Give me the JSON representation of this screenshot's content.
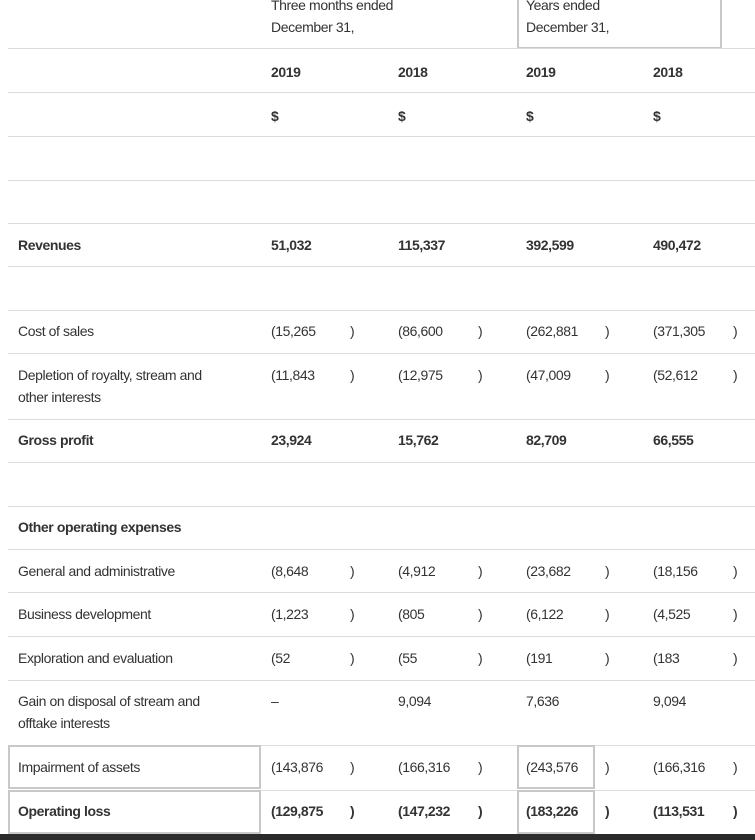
{
  "header": {
    "three_months": [
      "Three months ended",
      "December 31,"
    ],
    "years": [
      "Years ended",
      "December 31,"
    ],
    "years_row": [
      "2019",
      "2018",
      "2019",
      "2018"
    ],
    "currency_row": [
      "$",
      "$",
      "$",
      "$"
    ]
  },
  "rows": [
    {
      "label": "Revenues",
      "bold": true,
      "values": [
        "51,032",
        "115,337",
        "392,599",
        "490,472"
      ],
      "negative": [
        false,
        false,
        false,
        false
      ]
    },
    {
      "label": "Cost of sales",
      "values": [
        "(15,265",
        "(86,600",
        "(262,881",
        "(371,305"
      ],
      "negative": [
        true,
        true,
        true,
        true
      ]
    },
    {
      "label": "Depletion of royalty, stream and other interests",
      "label_lines": [
        "Depletion of royalty, stream and",
        "other interests"
      ],
      "values": [
        "(11,843",
        "(12,975",
        "(47,009",
        "(52,612"
      ],
      "negative": [
        true,
        true,
        true,
        true
      ]
    },
    {
      "label": "Gross profit",
      "bold": true,
      "values": [
        "23,924",
        "15,762",
        "82,709",
        "66,555"
      ],
      "negative": [
        false,
        false,
        false,
        false
      ]
    },
    {
      "label": "Other operating expenses",
      "bold": true,
      "section": true,
      "values": [
        "",
        "",
        "",
        ""
      ],
      "negative": [
        false,
        false,
        false,
        false
      ]
    },
    {
      "label": "General and administrative",
      "values": [
        "(8,648",
        "(4,912",
        "(23,682",
        "(18,156"
      ],
      "negative": [
        true,
        true,
        true,
        true
      ]
    },
    {
      "label": "Business development",
      "values": [
        "(1,223",
        "(805",
        "(6,122",
        "(4,525"
      ],
      "negative": [
        true,
        true,
        true,
        true
      ]
    },
    {
      "label": "Exploration and evaluation",
      "values": [
        "(52",
        "(55",
        "(191",
        "(183"
      ],
      "negative": [
        true,
        true,
        true,
        true
      ]
    },
    {
      "label": "Gain on disposal of stream and offtake interests",
      "label_lines": [
        "Gain on disposal of stream and",
        "offtake interests"
      ],
      "values": [
        "–",
        "9,094",
        "7,636",
        "9,094"
      ],
      "negative": [
        false,
        false,
        false,
        false
      ]
    },
    {
      "label": "Impairment of assets",
      "values": [
        "(143,876",
        "(166,316",
        "(243,576",
        "(166,316"
      ],
      "negative": [
        true,
        true,
        true,
        true
      ]
    },
    {
      "label": "Operating loss",
      "bold": true,
      "values": [
        "(129,875",
        "(147,232",
        "(183,226",
        "(113,531"
      ],
      "negative": [
        true,
        true,
        true,
        true
      ]
    }
  ],
  "close_paren": ")"
}
